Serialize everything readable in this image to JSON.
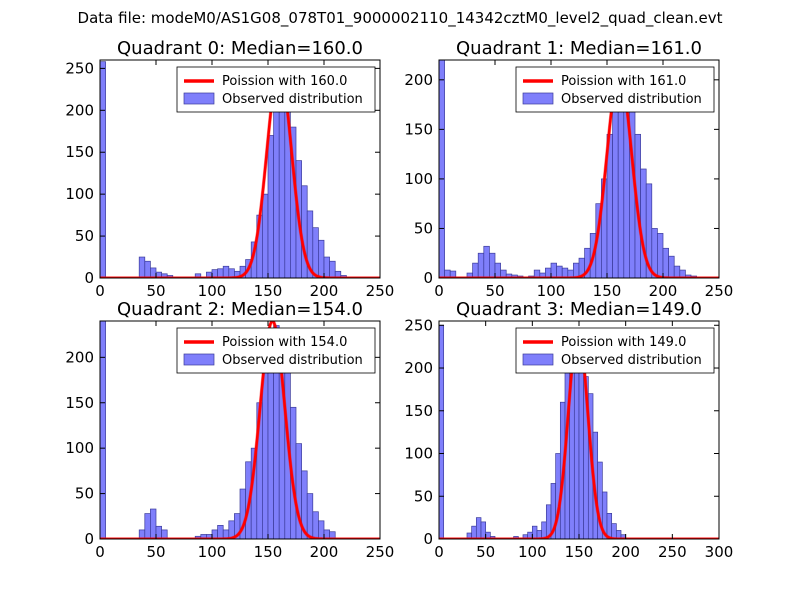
{
  "figure": {
    "suptitle": "Data file: modeM0/AS1G08_078T01_9000002110_14342cztM0_level2_quad_clean.evt"
  },
  "colors": {
    "bar_fill": "#7f7ffb",
    "bar_edge": "#3b3b9a",
    "poisson_line": "#ff0000",
    "legend_edge": "#000000"
  },
  "chart_data": [
    {
      "type": "bar",
      "title": "Quadrant 0: Median=160.0",
      "xlim": [
        0,
        250
      ],
      "ylim": [
        0,
        260
      ],
      "xticks": [
        0,
        50,
        100,
        150,
        200,
        250
      ],
      "yticks": [
        0,
        50,
        100,
        150,
        200,
        250
      ],
      "legend": {
        "line_label": "Poission with 160.0",
        "bar_label": "Observed distribution",
        "position": "top-right"
      },
      "poisson_mean": 160,
      "poisson_peak": 250,
      "poisson_sigma": 11,
      "bin_width": 5,
      "bins": [
        {
          "x": 0,
          "y": 258
        },
        {
          "x": 35,
          "y": 25
        },
        {
          "x": 40,
          "y": 20
        },
        {
          "x": 45,
          "y": 12
        },
        {
          "x": 50,
          "y": 7
        },
        {
          "x": 55,
          "y": 5
        },
        {
          "x": 60,
          "y": 3
        },
        {
          "x": 85,
          "y": 5
        },
        {
          "x": 95,
          "y": 7
        },
        {
          "x": 100,
          "y": 10
        },
        {
          "x": 105,
          "y": 11
        },
        {
          "x": 110,
          "y": 14
        },
        {
          "x": 115,
          "y": 11
        },
        {
          "x": 120,
          "y": 8
        },
        {
          "x": 125,
          "y": 14
        },
        {
          "x": 130,
          "y": 22
        },
        {
          "x": 135,
          "y": 43
        },
        {
          "x": 140,
          "y": 75
        },
        {
          "x": 145,
          "y": 100
        },
        {
          "x": 150,
          "y": 170
        },
        {
          "x": 155,
          "y": 230
        },
        {
          "x": 160,
          "y": 240
        },
        {
          "x": 165,
          "y": 225
        },
        {
          "x": 170,
          "y": 180
        },
        {
          "x": 175,
          "y": 140
        },
        {
          "x": 180,
          "y": 110
        },
        {
          "x": 185,
          "y": 80
        },
        {
          "x": 190,
          "y": 60
        },
        {
          "x": 195,
          "y": 45
        },
        {
          "x": 200,
          "y": 25
        },
        {
          "x": 205,
          "y": 20
        },
        {
          "x": 210,
          "y": 8
        },
        {
          "x": 215,
          "y": 3
        }
      ]
    },
    {
      "type": "bar",
      "title": "Quadrant 1: Median=161.0",
      "xlim": [
        0,
        250
      ],
      "ylim": [
        0,
        220
      ],
      "xticks": [
        0,
        50,
        100,
        150,
        200,
        250
      ],
      "yticks": [
        0,
        50,
        100,
        150,
        200
      ],
      "legend": {
        "line_label": "Poission with 161.0",
        "bar_label": "Observed distribution",
        "position": "top-right"
      },
      "poisson_mean": 161,
      "poisson_peak": 207,
      "poisson_sigma": 11,
      "bin_width": 5,
      "bins": [
        {
          "x": 0,
          "y": 220
        },
        {
          "x": 5,
          "y": 8
        },
        {
          "x": 10,
          "y": 7
        },
        {
          "x": 25,
          "y": 5
        },
        {
          "x": 30,
          "y": 15
        },
        {
          "x": 35,
          "y": 25
        },
        {
          "x": 40,
          "y": 32
        },
        {
          "x": 45,
          "y": 25
        },
        {
          "x": 50,
          "y": 15
        },
        {
          "x": 55,
          "y": 8
        },
        {
          "x": 60,
          "y": 4
        },
        {
          "x": 65,
          "y": 3
        },
        {
          "x": 70,
          "y": 2
        },
        {
          "x": 80,
          "y": 2
        },
        {
          "x": 85,
          "y": 8
        },
        {
          "x": 90,
          "y": 5
        },
        {
          "x": 95,
          "y": 10
        },
        {
          "x": 100,
          "y": 15
        },
        {
          "x": 105,
          "y": 12
        },
        {
          "x": 110,
          "y": 10
        },
        {
          "x": 115,
          "y": 8
        },
        {
          "x": 120,
          "y": 15
        },
        {
          "x": 125,
          "y": 20
        },
        {
          "x": 130,
          "y": 30
        },
        {
          "x": 135,
          "y": 45
        },
        {
          "x": 140,
          "y": 75
        },
        {
          "x": 145,
          "y": 100
        },
        {
          "x": 150,
          "y": 145
        },
        {
          "x": 155,
          "y": 200
        },
        {
          "x": 160,
          "y": 210
        },
        {
          "x": 165,
          "y": 195
        },
        {
          "x": 170,
          "y": 175
        },
        {
          "x": 175,
          "y": 145
        },
        {
          "x": 180,
          "y": 110
        },
        {
          "x": 185,
          "y": 95
        },
        {
          "x": 190,
          "y": 50
        },
        {
          "x": 195,
          "y": 45
        },
        {
          "x": 200,
          "y": 30
        },
        {
          "x": 205,
          "y": 22
        },
        {
          "x": 210,
          "y": 12
        },
        {
          "x": 215,
          "y": 8
        },
        {
          "x": 220,
          "y": 3
        },
        {
          "x": 225,
          "y": 2
        }
      ]
    },
    {
      "type": "bar",
      "title": "Quadrant 2: Median=154.0",
      "xlim": [
        0,
        250
      ],
      "ylim": [
        0,
        240
      ],
      "xticks": [
        0,
        50,
        100,
        150,
        200,
        250
      ],
      "yticks": [
        0,
        50,
        100,
        150,
        200
      ],
      "legend": {
        "line_label": "Poission with 154.0",
        "bar_label": "Observed distribution",
        "position": "top-right"
      },
      "poisson_mean": 154,
      "poisson_peak": 240,
      "poisson_sigma": 11,
      "bin_width": 5,
      "bins": [
        {
          "x": 0,
          "y": 240
        },
        {
          "x": 35,
          "y": 10
        },
        {
          "x": 40,
          "y": 28
        },
        {
          "x": 45,
          "y": 33
        },
        {
          "x": 50,
          "y": 14
        },
        {
          "x": 55,
          "y": 10
        },
        {
          "x": 85,
          "y": 3
        },
        {
          "x": 90,
          "y": 5
        },
        {
          "x": 95,
          "y": 5
        },
        {
          "x": 100,
          "y": 10
        },
        {
          "x": 105,
          "y": 15
        },
        {
          "x": 110,
          "y": 10
        },
        {
          "x": 115,
          "y": 20
        },
        {
          "x": 120,
          "y": 28
        },
        {
          "x": 125,
          "y": 55
        },
        {
          "x": 130,
          "y": 85
        },
        {
          "x": 135,
          "y": 100
        },
        {
          "x": 140,
          "y": 150
        },
        {
          "x": 145,
          "y": 200
        },
        {
          "x": 150,
          "y": 230
        },
        {
          "x": 155,
          "y": 235
        },
        {
          "x": 160,
          "y": 220
        },
        {
          "x": 165,
          "y": 190
        },
        {
          "x": 170,
          "y": 145
        },
        {
          "x": 175,
          "y": 105
        },
        {
          "x": 180,
          "y": 75
        },
        {
          "x": 185,
          "y": 50
        },
        {
          "x": 190,
          "y": 30
        },
        {
          "x": 195,
          "y": 20
        },
        {
          "x": 200,
          "y": 10
        },
        {
          "x": 205,
          "y": 8
        }
      ]
    },
    {
      "type": "bar",
      "title": "Quadrant 3: Median=149.0",
      "xlim": [
        0,
        300
      ],
      "ylim": [
        0,
        255
      ],
      "xticks": [
        0,
        50,
        100,
        150,
        200,
        250,
        300
      ],
      "yticks": [
        0,
        50,
        100,
        150,
        200,
        250
      ],
      "legend": {
        "line_label": "Poission with 149.0",
        "bar_label": "Observed distribution",
        "position": "top-right"
      },
      "poisson_mean": 149,
      "poisson_peak": 243,
      "poisson_sigma": 10.5,
      "bin_width": 5,
      "bins": [
        {
          "x": 0,
          "y": 250
        },
        {
          "x": 30,
          "y": 7
        },
        {
          "x": 35,
          "y": 15
        },
        {
          "x": 40,
          "y": 25
        },
        {
          "x": 45,
          "y": 20
        },
        {
          "x": 50,
          "y": 8
        },
        {
          "x": 55,
          "y": 3
        },
        {
          "x": 80,
          "y": 3
        },
        {
          "x": 90,
          "y": 5
        },
        {
          "x": 95,
          "y": 8
        },
        {
          "x": 100,
          "y": 15
        },
        {
          "x": 105,
          "y": 10
        },
        {
          "x": 110,
          "y": 20
        },
        {
          "x": 115,
          "y": 40
        },
        {
          "x": 120,
          "y": 65
        },
        {
          "x": 125,
          "y": 100
        },
        {
          "x": 130,
          "y": 160
        },
        {
          "x": 135,
          "y": 205
        },
        {
          "x": 140,
          "y": 240
        },
        {
          "x": 145,
          "y": 235
        },
        {
          "x": 150,
          "y": 225
        },
        {
          "x": 155,
          "y": 190
        },
        {
          "x": 160,
          "y": 170
        },
        {
          "x": 165,
          "y": 125
        },
        {
          "x": 170,
          "y": 90
        },
        {
          "x": 175,
          "y": 55
        },
        {
          "x": 180,
          "y": 30
        },
        {
          "x": 185,
          "y": 18
        },
        {
          "x": 190,
          "y": 10
        },
        {
          "x": 195,
          "y": 5
        }
      ]
    }
  ]
}
